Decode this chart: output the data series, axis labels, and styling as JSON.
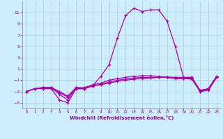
{
  "title": "",
  "xlabel": "Windchill (Refroidissement éolien,°C)",
  "ylabel": "",
  "bg_color": "#cceeff",
  "grid_color": "#aacccc",
  "line_color": "#aa00aa",
  "xlim": [
    -0.5,
    23.5
  ],
  "ylim": [
    -6,
    13
  ],
  "yticks": [
    -5,
    -3,
    -1,
    1,
    3,
    5,
    7,
    9,
    11
  ],
  "xticks": [
    0,
    1,
    2,
    3,
    4,
    5,
    6,
    7,
    8,
    9,
    10,
    11,
    12,
    13,
    14,
    15,
    16,
    17,
    18,
    19,
    20,
    21,
    22,
    23
  ],
  "hours": [
    0,
    1,
    2,
    3,
    4,
    5,
    6,
    7,
    8,
    9,
    10,
    11,
    12,
    13,
    14,
    15,
    16,
    17,
    18,
    19,
    20,
    21,
    22,
    23
  ],
  "curve1": [
    -3.0,
    -2.5,
    -2.5,
    -2.5,
    -4.5,
    -5.0,
    -2.5,
    -2.5,
    -2.0,
    -0.3,
    1.8,
    6.5,
    10.5,
    11.8,
    11.2,
    11.5,
    11.5,
    9.5,
    5.0,
    -0.5,
    -0.5,
    -3.0,
    -2.5,
    -0.5
  ],
  "curve2": [
    -3.0,
    -2.5,
    -2.3,
    -2.3,
    -3.2,
    -4.0,
    -2.5,
    -2.5,
    -2.0,
    -1.8,
    -1.5,
    -1.2,
    -1.0,
    -0.8,
    -0.7,
    -0.6,
    -0.5,
    -0.5,
    -0.6,
    -0.7,
    -0.8,
    -3.0,
    -2.8,
    -0.5
  ],
  "curve3": [
    -3.0,
    -2.5,
    -2.3,
    -2.3,
    -3.0,
    -3.8,
    -2.3,
    -2.5,
    -2.0,
    -1.7,
    -1.3,
    -1.0,
    -0.8,
    -0.6,
    -0.5,
    -0.5,
    -0.5,
    -0.4,
    -0.5,
    -0.5,
    -0.5,
    -2.8,
    -2.5,
    -0.3
  ],
  "curve4": [
    -3.0,
    -2.5,
    -2.3,
    -2.3,
    -3.5,
    -4.5,
    -2.3,
    -2.3,
    -1.8,
    -1.5,
    -1.0,
    -0.7,
    -0.5,
    -0.3,
    -0.2,
    -0.2,
    -0.3,
    -0.5,
    -0.7,
    -0.7,
    -0.6,
    -2.8,
    -2.5,
    -0.3
  ]
}
